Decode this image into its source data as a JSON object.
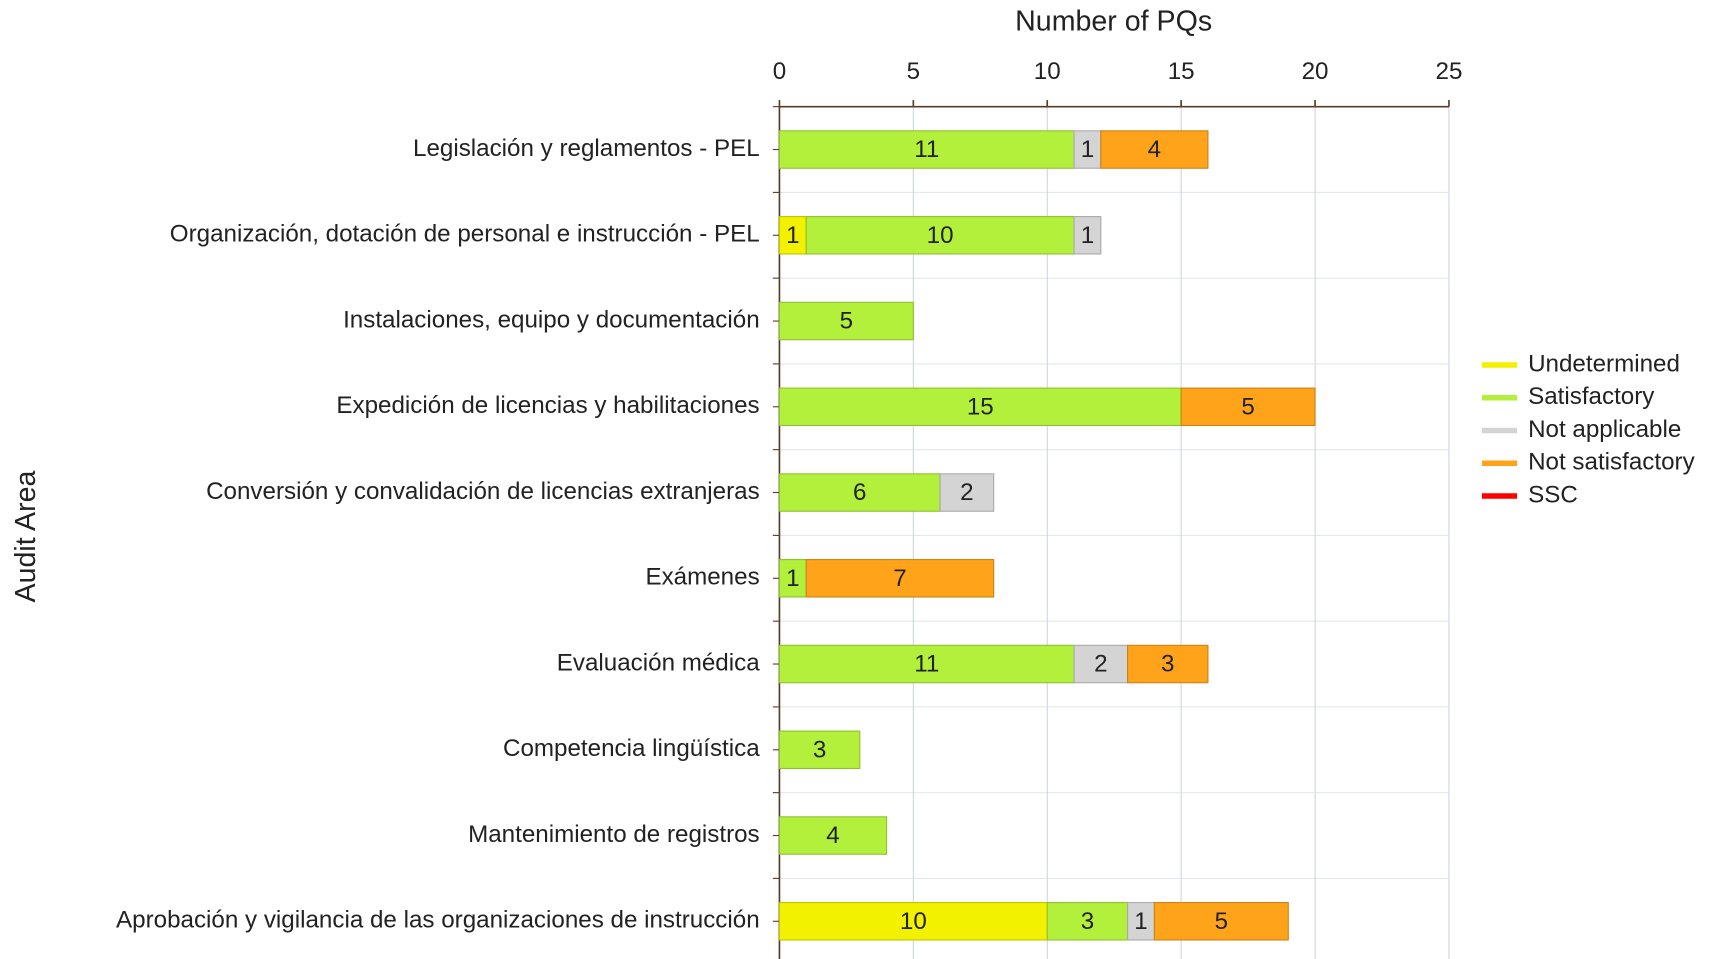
{
  "chart_data": {
    "type": "stacked-bar-horizontal",
    "x_axis_label": "Number of PQs",
    "y_axis_label": "Audit Area",
    "categories": [
      "Legislación y reglamentos - PEL",
      "Organización, dotación de personal e instrucción - PEL",
      "Instalaciones, equipo y documentación",
      "Expedición de licencias y habilitaciones",
      "Conversión y convalidación de licencias extranjeras",
      "Exámenes",
      "Evaluación médica",
      "Competencia lingüística",
      "Mantenimiento de registros",
      "Aprobación y vigilancia de las organizaciones de instrucción"
    ],
    "series": [
      {
        "name": "Undetermined",
        "color": "#f2f200",
        "values": [
          0,
          1,
          0,
          0,
          0,
          0,
          0,
          0,
          0,
          10
        ]
      },
      {
        "name": "Satisfactory",
        "color": "#b3f03c",
        "values": [
          11,
          10,
          5,
          15,
          6,
          1,
          11,
          3,
          4,
          3
        ]
      },
      {
        "name": "Not applicable",
        "color": "#d4d4d4",
        "values": [
          1,
          1,
          0,
          0,
          2,
          0,
          2,
          0,
          0,
          1
        ]
      },
      {
        "name": "Not satisfactory",
        "color": "#ffa31a",
        "values": [
          4,
          0,
          0,
          5,
          0,
          7,
          3,
          0,
          0,
          5
        ]
      },
      {
        "name": "SSC",
        "color": "#ff0000",
        "values": [
          0,
          0,
          0,
          0,
          0,
          0,
          0,
          0,
          0,
          0
        ]
      }
    ],
    "xlim": [
      0,
      25
    ],
    "xticks": [
      0,
      5,
      10,
      15,
      20,
      25
    ],
    "grid": true,
    "legend": "right"
  }
}
